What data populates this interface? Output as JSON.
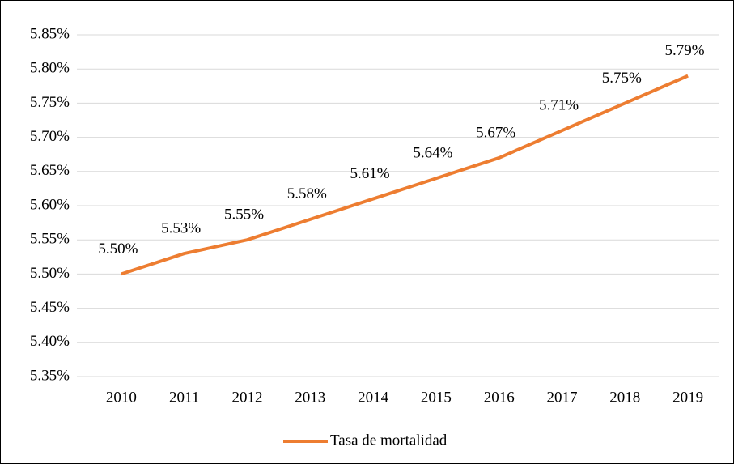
{
  "chart_data": {
    "type": "line",
    "categories": [
      "2010",
      "2011",
      "2012",
      "2013",
      "2014",
      "2015",
      "2016",
      "2017",
      "2018",
      "2019"
    ],
    "series": [
      {
        "name": "Tasa de mortalidad",
        "color": "#ed7d31",
        "values": [
          5.5,
          5.53,
          5.55,
          5.58,
          5.61,
          5.64,
          5.67,
          5.71,
          5.75,
          5.79
        ],
        "value_labels": [
          "5.50%",
          "5.53%",
          "5.55%",
          "5.58%",
          "5.61%",
          "5.64%",
          "5.67%",
          "5.71%",
          "5.75%",
          "5.79%"
        ]
      }
    ],
    "ylim": [
      5.35,
      5.85
    ],
    "yticks": [
      {
        "value": 5.35,
        "label": "5.35%"
      },
      {
        "value": 5.4,
        "label": "5.40%"
      },
      {
        "value": 5.45,
        "label": "5.45%"
      },
      {
        "value": 5.5,
        "label": "5.50%"
      },
      {
        "value": 5.55,
        "label": "5.55%"
      },
      {
        "value": 5.6,
        "label": "5.60%"
      },
      {
        "value": 5.65,
        "label": "5.65%"
      },
      {
        "value": 5.7,
        "label": "5.70%"
      },
      {
        "value": 5.75,
        "label": "5.75%"
      },
      {
        "value": 5.8,
        "label": "5.80%"
      },
      {
        "value": 5.85,
        "label": "5.85%"
      }
    ],
    "grid": true,
    "legend": "bottom"
  }
}
